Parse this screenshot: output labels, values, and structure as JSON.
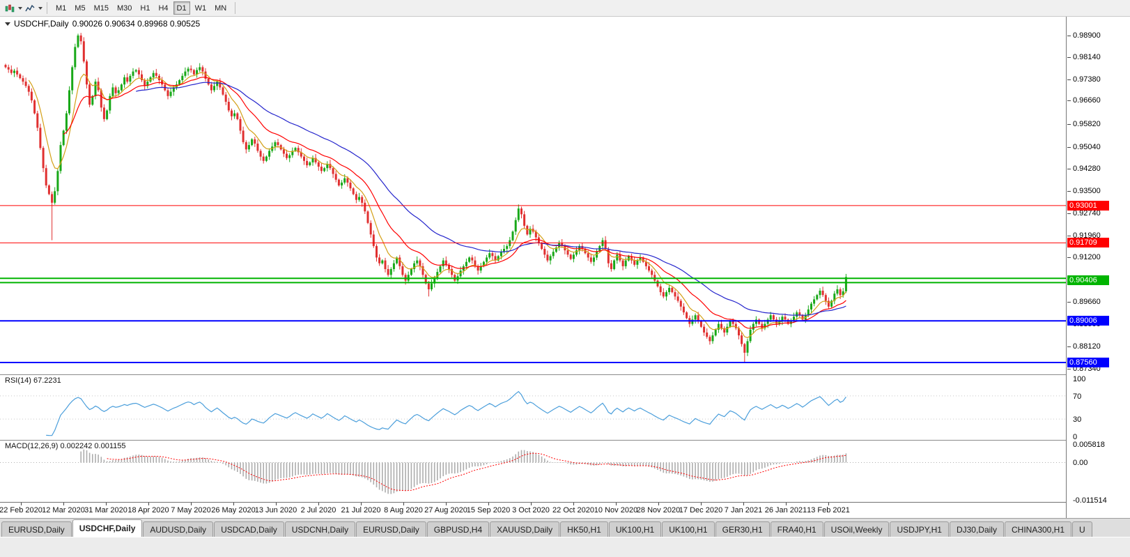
{
  "toolbar": {
    "timeframes": [
      "M1",
      "M5",
      "M15",
      "M30",
      "H1",
      "H4",
      "D1",
      "W1",
      "MN"
    ],
    "active_timeframe": "D1"
  },
  "chart_header": {
    "symbol": "USDCHF,Daily",
    "ohlc": "0.90026 0.90634 0.89968 0.90525"
  },
  "chart_data": {
    "type": "candlestick",
    "symbol": "USDCHF",
    "timeframe": "Daily",
    "title_ohlc": {
      "open": "0.90026",
      "high": "0.90634",
      "low": "0.89968",
      "close": "0.90525"
    },
    "ylim": [
      0.8715,
      0.9955
    ],
    "up_color": "#18A818",
    "down_color": "#E03030",
    "first_open": 0.9788,
    "closes": [
      0.978,
      0.9772,
      0.976,
      0.9768,
      0.9755,
      0.9742,
      0.973,
      0.9715,
      0.9695,
      0.9665,
      0.962,
      0.957,
      0.95,
      0.943,
      0.937,
      0.934,
      0.931,
      0.935,
      0.942,
      0.951,
      0.956,
      0.962,
      0.97,
      0.978,
      0.985,
      0.989,
      0.987,
      0.98,
      0.972,
      0.965,
      0.968,
      0.973,
      0.97,
      0.964,
      0.96,
      0.963,
      0.968,
      0.971,
      0.969,
      0.97,
      0.972,
      0.9745,
      0.973,
      0.975,
      0.9765,
      0.977,
      0.9755,
      0.9735,
      0.9715,
      0.973,
      0.9745,
      0.976,
      0.975,
      0.9735,
      0.972,
      0.97,
      0.968,
      0.9695,
      0.971,
      0.972,
      0.9735,
      0.975,
      0.9765,
      0.9775,
      0.977,
      0.9755,
      0.977,
      0.978,
      0.9765,
      0.974,
      0.972,
      0.97,
      0.9715,
      0.973,
      0.971,
      0.9685,
      0.966,
      0.963,
      0.961,
      0.962,
      0.96,
      0.956,
      0.952,
      0.9495,
      0.951,
      0.953,
      0.9515,
      0.949,
      0.947,
      0.9455,
      0.947,
      0.949,
      0.9505,
      0.952,
      0.951,
      0.9495,
      0.948,
      0.9465,
      0.9475,
      0.949,
      0.95,
      0.9485,
      0.947,
      0.9455,
      0.944,
      0.945,
      0.9465,
      0.945,
      0.9435,
      0.942,
      0.943,
      0.9445,
      0.943,
      0.941,
      0.939,
      0.937,
      0.938,
      0.9395,
      0.938,
      0.936,
      0.934,
      0.932,
      0.933,
      0.931,
      0.928,
      0.924,
      0.92,
      0.916,
      0.912,
      0.91,
      0.911,
      0.908,
      0.906,
      0.908,
      0.91,
      0.912,
      0.909,
      0.906,
      0.904,
      0.906,
      0.908,
      0.91,
      0.911,
      0.909,
      0.906,
      0.903,
      0.901,
      0.903,
      0.905,
      0.907,
      0.909,
      0.911,
      0.9095,
      0.908,
      0.906,
      0.904,
      0.9055,
      0.9075,
      0.909,
      0.9105,
      0.912,
      0.911,
      0.909,
      0.9075,
      0.909,
      0.9105,
      0.912,
      0.9135,
      0.9125,
      0.911,
      0.9125,
      0.914,
      0.915,
      0.916,
      0.918,
      0.921,
      0.925,
      0.929,
      0.927,
      0.923,
      0.92,
      0.922,
      0.921,
      0.919,
      0.917,
      0.915,
      0.913,
      0.911,
      0.9125,
      0.914,
      0.9155,
      0.917,
      0.916,
      0.9145,
      0.913,
      0.9115,
      0.913,
      0.9145,
      0.916,
      0.915,
      0.9135,
      0.912,
      0.9105,
      0.912,
      0.914,
      0.916,
      0.918,
      0.915,
      0.91,
      0.908,
      0.911,
      0.913,
      0.911,
      0.909,
      0.911,
      0.9125,
      0.911,
      0.9095,
      0.911,
      0.912,
      0.9105,
      0.909,
      0.9075,
      0.906,
      0.904,
      0.902,
      0.9,
      0.8985,
      0.9,
      0.9015,
      0.9,
      0.8985,
      0.897,
      0.895,
      0.893,
      0.891,
      0.889,
      0.8905,
      0.892,
      0.89,
      0.888,
      0.886,
      0.8845,
      0.883,
      0.885,
      0.887,
      0.889,
      0.8875,
      0.886,
      0.888,
      0.89,
      0.889,
      0.8875,
      0.885,
      0.882,
      0.879,
      0.883,
      0.887,
      0.889,
      0.8905,
      0.889,
      0.8875,
      0.889,
      0.8905,
      0.892,
      0.8905,
      0.889,
      0.89,
      0.8915,
      0.8905,
      0.889,
      0.89,
      0.8915,
      0.893,
      0.892,
      0.8905,
      0.892,
      0.894,
      0.896,
      0.8975,
      0.899,
      0.9005,
      0.899,
      0.897,
      0.895,
      0.897,
      0.8995,
      0.901,
      0.899,
      0.9003,
      0.90525
    ],
    "special_wicks": {
      "16": {
        "low": 0.918
      },
      "25": {
        "high": 0.9896
      },
      "146": {
        "low": 0.8985
      },
      "243": {
        "low": 0.8818
      },
      "255": {
        "low": 0.8757
      },
      "290": {
        "high": 0.90634,
        "low": 0.89968
      }
    },
    "moving_averages": [
      {
        "period": 8,
        "type": "ema",
        "color": "#D4A017"
      },
      {
        "period": 20,
        "type": "ema",
        "color": "#FF0000"
      },
      {
        "period": 45,
        "type": "ema",
        "color": "#2424CC"
      }
    ],
    "hlines": [
      {
        "value": 0.93001,
        "color": "#FF0000",
        "width": 1,
        "label": "0.93001"
      },
      {
        "value": 0.91709,
        "color": "#FF0000",
        "width": 1,
        "label": "0.91709"
      },
      {
        "value": 0.9048,
        "color": "#00B400",
        "width": 2,
        "label": null
      },
      {
        "value": 0.9033,
        "color": "#00B400",
        "width": 2,
        "label": null
      },
      {
        "value": 0.90406,
        "color": "#00B400",
        "width": 0,
        "label": "0.90406"
      },
      {
        "value": 0.89006,
        "color": "#0000FF",
        "width": 2,
        "label": "0.89006"
      },
      {
        "value": 0.8756,
        "color": "#0000FF",
        "width": 2,
        "label": "0.87560"
      }
    ],
    "price_ticks": [
      "0.98900",
      "0.98140",
      "0.97380",
      "0.96660",
      "0.95820",
      "0.95040",
      "0.94280",
      "0.93500",
      "0.92740",
      "0.91960",
      "0.91200",
      "0.90420",
      "0.89660",
      "0.88900",
      "0.88120",
      "0.87340"
    ],
    "date_labels": [
      "22 Feb 2020",
      "12 Mar 2020",
      "31 Mar 2020",
      "18 Apr 2020",
      "7 May 2020",
      "26 May 2020",
      "13 Jun 2020",
      "2 Jul 2020",
      "21 Jul 2020",
      "8 Aug 2020",
      "27 Aug 2020",
      "15 Sep 2020",
      "3 Oct 2020",
      "22 Oct 2020",
      "10 Nov 2020",
      "28 Nov 2020",
      "17 Dec 2020",
      "7 Jan 2021",
      "26 Jan 2021",
      "13 Feb 2021"
    ],
    "rsi": {
      "label": "RSI(14) 67.2231",
      "period": 14,
      "value": "67.2231",
      "color": "#4A9EDB",
      "levels": [
        100,
        70,
        30,
        0
      ],
      "axis_labels": [
        "100",
        "70",
        "30",
        "0"
      ],
      "ylim": [
        0,
        100
      ]
    },
    "macd": {
      "label": "MACD(12,26,9) 0.002242 0.001155",
      "fast": 12,
      "slow": 26,
      "signal": 9,
      "main_value": "0.002242",
      "signal_value": "0.001155",
      "hist_color": "#ADADAD",
      "signal_color": "#FF0000",
      "ylim": [
        -0.0122,
        0.0068
      ],
      "axis_ticks": [
        {
          "text": "0.005818",
          "value": 0.005818
        },
        {
          "text": "0.00",
          "value": 0
        },
        {
          "text": "-0.011514",
          "value": -0.011514
        }
      ]
    }
  },
  "bottom_tabs": [
    {
      "label": "EURUSD,Daily",
      "active": false
    },
    {
      "label": "USDCHF,Daily",
      "active": true
    },
    {
      "label": "AUDUSD,Daily",
      "active": false
    },
    {
      "label": "USDCAD,Daily",
      "active": false
    },
    {
      "label": "USDCNH,Daily",
      "active": false
    },
    {
      "label": "EURUSD,Daily",
      "active": false
    },
    {
      "label": "GBPUSD,H4",
      "active": false
    },
    {
      "label": "XAUUSD,Daily",
      "active": false
    },
    {
      "label": "HK50,H1",
      "active": false
    },
    {
      "label": "UK100,H1",
      "active": false
    },
    {
      "label": "UK100,H1",
      "active": false
    },
    {
      "label": "GER30,H1",
      "active": false
    },
    {
      "label": "FRA40,H1",
      "active": false
    },
    {
      "label": "USOil,Weekly",
      "active": false
    },
    {
      "label": "USDJPY,H1",
      "active": false
    },
    {
      "label": "DJ30,Daily",
      "active": false
    },
    {
      "label": "CHINA300,H1",
      "active": false
    },
    {
      "label": "U",
      "active": false
    }
  ]
}
